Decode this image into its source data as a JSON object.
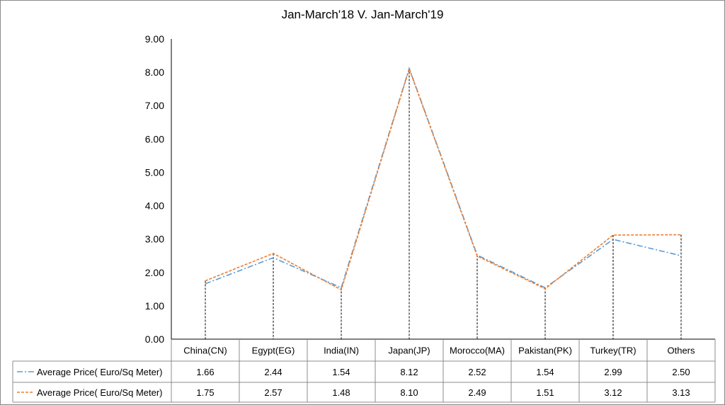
{
  "chart_data": {
    "type": "line",
    "title": "Jan-March'18  V. Jan-March'19",
    "xlabel": "",
    "ylabel": "",
    "ylim": [
      0,
      9
    ],
    "yticks": [
      "0.00",
      "1.00",
      "2.00",
      "3.00",
      "4.00",
      "5.00",
      "6.00",
      "7.00",
      "8.00",
      "9.00"
    ],
    "categories": [
      "China(CN)",
      "Egypt(EG)",
      "India(IN)",
      "Japan(JP)",
      "Morocco(MA)",
      "Pakistan(PK)",
      "Turkey(TR)",
      "Others"
    ],
    "grid": false,
    "legend": "data-table",
    "series": [
      {
        "name": "Average Price( Euro/Sq Meter)",
        "color": "#5b9bd5",
        "style": "dash-dot",
        "values": [
          1.66,
          2.44,
          1.54,
          8.12,
          2.52,
          1.54,
          2.99,
          2.5
        ],
        "labels": [
          "1.66",
          "2.44",
          "1.54",
          "8.12",
          "2.52",
          "1.54",
          "2.99",
          "2.50"
        ]
      },
      {
        "name": "Average Price( Euro/Sq Meter)",
        "color": "#ed7d31",
        "style": "dashed",
        "values": [
          1.75,
          2.57,
          1.48,
          8.1,
          2.49,
          1.51,
          3.12,
          3.13
        ],
        "labels": [
          "1.75",
          "2.57",
          "1.48",
          "8.10",
          "2.49",
          "1.51",
          "3.12",
          "3.13"
        ]
      }
    ]
  }
}
